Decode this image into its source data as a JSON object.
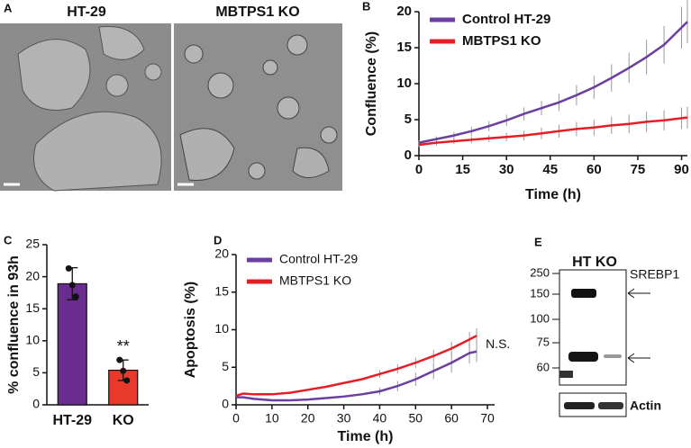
{
  "panel_a": {
    "label": "A",
    "images": [
      {
        "title": "HT-29"
      },
      {
        "title": "MBTPS1 KO"
      }
    ]
  },
  "chart_data": [
    {
      "panel": "B",
      "type": "line",
      "xlabel": "Time (h)",
      "ylabel": "Confluence (%)",
      "x": [
        0,
        6,
        12,
        18,
        24,
        30,
        36,
        42,
        48,
        54,
        60,
        66,
        72,
        78,
        84,
        90,
        92
      ],
      "series": [
        {
          "name": "Control HT-29",
          "color": "#6b3fa0",
          "values": [
            1.8,
            2.3,
            2.8,
            3.4,
            4.1,
            4.9,
            5.8,
            6.6,
            7.4,
            8.4,
            9.5,
            10.8,
            12.2,
            13.7,
            15.4,
            17.8,
            18.6
          ],
          "errors": [
            0.3,
            0.4,
            0.5,
            0.6,
            0.7,
            0.8,
            0.9,
            1.0,
            1.2,
            1.4,
            1.6,
            1.9,
            2.1,
            2.4,
            2.6,
            2.9,
            3.0
          ]
        },
        {
          "name": "MBTPS1 KO",
          "color": "#e41e26",
          "values": [
            1.5,
            1.8,
            2.0,
            2.2,
            2.4,
            2.6,
            2.8,
            3.1,
            3.4,
            3.7,
            3.9,
            4.2,
            4.4,
            4.7,
            4.9,
            5.2,
            5.3
          ],
          "errors": [
            0.3,
            0.4,
            0.4,
            0.5,
            0.5,
            0.6,
            0.7,
            0.8,
            0.9,
            1.0,
            1.1,
            1.2,
            1.3,
            1.4,
            1.4,
            1.5,
            1.5
          ]
        }
      ],
      "xlim": [
        0,
        92
      ],
      "xticks": [
        0,
        15,
        30,
        45,
        60,
        75,
        90
      ],
      "ylim": [
        0,
        20
      ],
      "yticks": [
        0,
        5,
        10,
        15,
        20
      ],
      "legend": "upper left"
    },
    {
      "panel": "C",
      "type": "bar",
      "ylabel": "% confluence in 93h",
      "categories": [
        "HT-29",
        "KO"
      ],
      "values": [
        18.9,
        5.4
      ],
      "errors": [
        2.5,
        1.6
      ],
      "colors": [
        "#6a2d8f",
        "#e8392b"
      ],
      "points": [
        [
          21.3,
          18.7,
          16.9
        ],
        [
          7.0,
          5.3,
          3.8
        ]
      ],
      "annotation": "**",
      "ylim": [
        0,
        25
      ],
      "yticks": [
        0,
        5,
        10,
        15,
        20,
        25
      ]
    },
    {
      "panel": "D",
      "type": "line",
      "xlabel": "Time (h)",
      "ylabel": "Apoptosis (%)",
      "x": [
        0,
        2,
        5,
        10,
        15,
        20,
        25,
        30,
        35,
        40,
        45,
        50,
        55,
        60,
        65,
        67
      ],
      "series": [
        {
          "name": "Control HT-29",
          "color": "#6b3fa0",
          "values": [
            1.0,
            1.0,
            0.8,
            0.6,
            0.6,
            0.7,
            0.9,
            1.1,
            1.4,
            1.8,
            2.5,
            3.4,
            4.5,
            5.6,
            6.9,
            7.1
          ],
          "errors": [
            null,
            null,
            null,
            null,
            null,
            null,
            null,
            null,
            null,
            0.5,
            0.7,
            0.9,
            1.1,
            1.3,
            1.4,
            1.4
          ]
        },
        {
          "name": "MBTPS1 KO",
          "color": "#e41e26",
          "values": [
            1.2,
            1.5,
            1.4,
            1.4,
            1.6,
            2.0,
            2.4,
            2.9,
            3.4,
            4.1,
            4.8,
            5.6,
            6.5,
            7.5,
            8.7,
            9.2
          ],
          "errors": [
            null,
            null,
            null,
            null,
            null,
            null,
            null,
            null,
            null,
            0.5,
            0.6,
            0.7,
            0.8,
            0.9,
            1.0,
            1.0
          ]
        }
      ],
      "annotation": "N.S.",
      "xlim": [
        0,
        72
      ],
      "xticks": [
        0,
        10,
        20,
        30,
        40,
        50,
        60,
        70
      ],
      "ylim": [
        0,
        20
      ],
      "yticks": [
        0,
        5,
        10,
        15,
        20
      ],
      "legend": "upper left"
    }
  ],
  "panel_e": {
    "label": "E",
    "lanes": "HT KO",
    "markers": [
      "250",
      "150",
      "100",
      "75",
      "60"
    ],
    "target": "SREBP1",
    "loading": "Actin"
  }
}
